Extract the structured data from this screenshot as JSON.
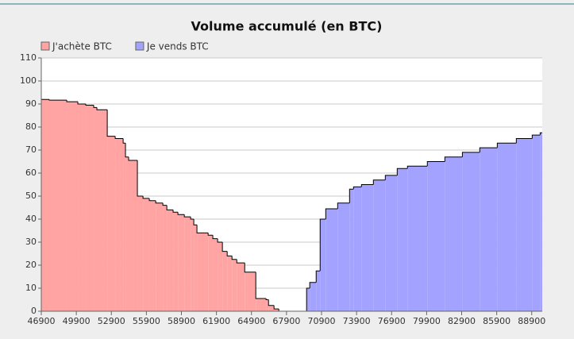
{
  "chart_data": {
    "type": "step-area",
    "title": "Volume accumulé (en BTC)",
    "series": [
      {
        "name": "J'achète BTC",
        "color": "#ffa3a3",
        "x": [
          46900,
          47580,
          49080,
          50030,
          50710,
          51390,
          51660,
          52550,
          53230,
          53910,
          54110,
          54380,
          55130,
          55610,
          56150,
          56700,
          57310,
          57650,
          58190,
          58600,
          59150,
          59690,
          59960,
          60230,
          61190,
          61590,
          62000,
          62410,
          62820,
          63230,
          63640,
          64320,
          65270,
          66150,
          66360,
          66830,
          67240
        ],
        "values": [
          92,
          91.7,
          91,
          90,
          89.5,
          88.5,
          87.5,
          76,
          75,
          73,
          67,
          65.5,
          50,
          49,
          48,
          47,
          46,
          44,
          43,
          42,
          41,
          40,
          37.5,
          34,
          33,
          31.5,
          30,
          26,
          24,
          22.5,
          21,
          17,
          5.5,
          5,
          2.5,
          1,
          0
        ]
      },
      {
        "name": "Je vends BTC",
        "color": "#a3a3ff",
        "x": [
          69490,
          69620,
          69890,
          70440,
          70780,
          71260,
          72280,
          73300,
          73640,
          74320,
          75340,
          76360,
          77380,
          78260,
          79960,
          81460,
          82960,
          84450,
          85950,
          87580,
          88940,
          89620
        ],
        "values": [
          0,
          10,
          12.5,
          17.5,
          40,
          44.5,
          47,
          53,
          54,
          55,
          57,
          59,
          62,
          63,
          65,
          67,
          69,
          71,
          73,
          75,
          76.5,
          77.5
        ]
      }
    ],
    "xlim": [
      46900,
      89800
    ],
    "xticks": [
      46900,
      49900,
      52900,
      55900,
      58900,
      61900,
      64900,
      67900,
      70900,
      73900,
      76900,
      79900,
      82900,
      85900,
      88900
    ],
    "ylim": [
      0,
      110
    ],
    "yticks": [
      0,
      10,
      20,
      30,
      40,
      50,
      60,
      70,
      80,
      90,
      100,
      110
    ],
    "grid": true,
    "legend": "top-left"
  }
}
